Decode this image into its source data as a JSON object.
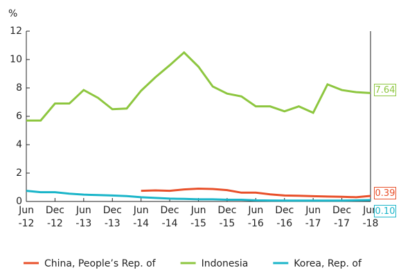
{
  "chart_data": {
    "type": "line",
    "y_label": "%",
    "categories": [
      "Jun\n-12",
      null,
      "Dec\n-12",
      null,
      "Jun\n-13",
      null,
      "Dec\n-13",
      null,
      "Jun\n-14",
      null,
      "Dec\n-14",
      null,
      "Jun\n-15",
      null,
      "Dec\n-15",
      null,
      "Jun\n-16",
      null,
      "Dec\n-16",
      null,
      "Jun\n-17",
      null,
      "Dec\n-17",
      null,
      "Jun\n-18"
    ],
    "series": [
      {
        "name": "China, People’s Rep. of",
        "color": "#e8502a",
        "end_label": "0.39",
        "values": [
          null,
          null,
          null,
          null,
          null,
          null,
          null,
          null,
          0.75,
          0.78,
          0.75,
          0.85,
          0.9,
          0.88,
          0.8,
          0.62,
          0.62,
          0.5,
          0.42,
          0.4,
          0.37,
          0.35,
          0.33,
          0.3,
          0.39
        ]
      },
      {
        "name": "Indonesia",
        "color": "#8dc63f",
        "end_label": "7.64",
        "values": [
          5.7,
          5.7,
          6.9,
          6.9,
          7.85,
          7.3,
          6.5,
          6.55,
          7.8,
          8.75,
          9.6,
          10.5,
          9.5,
          8.1,
          7.6,
          7.4,
          6.7,
          6.7,
          6.35,
          6.7,
          6.25,
          8.25,
          7.85,
          7.7,
          7.64
        ]
      },
      {
        "name": "Korea, Rep. of",
        "color": "#1ab5c9",
        "end_label": "0.10",
        "values": [
          0.75,
          0.65,
          0.65,
          0.55,
          0.48,
          0.45,
          0.42,
          0.38,
          0.3,
          0.25,
          0.2,
          0.18,
          0.15,
          0.15,
          0.12,
          0.12,
          0.08,
          0.07,
          0.06,
          0.06,
          0.06,
          0.06,
          0.06,
          0.08,
          0.1
        ]
      }
    ],
    "ylim": [
      0,
      12
    ],
    "yticks": [
      0,
      2,
      4,
      6,
      8,
      10,
      12
    ],
    "legend": "bottom"
  }
}
